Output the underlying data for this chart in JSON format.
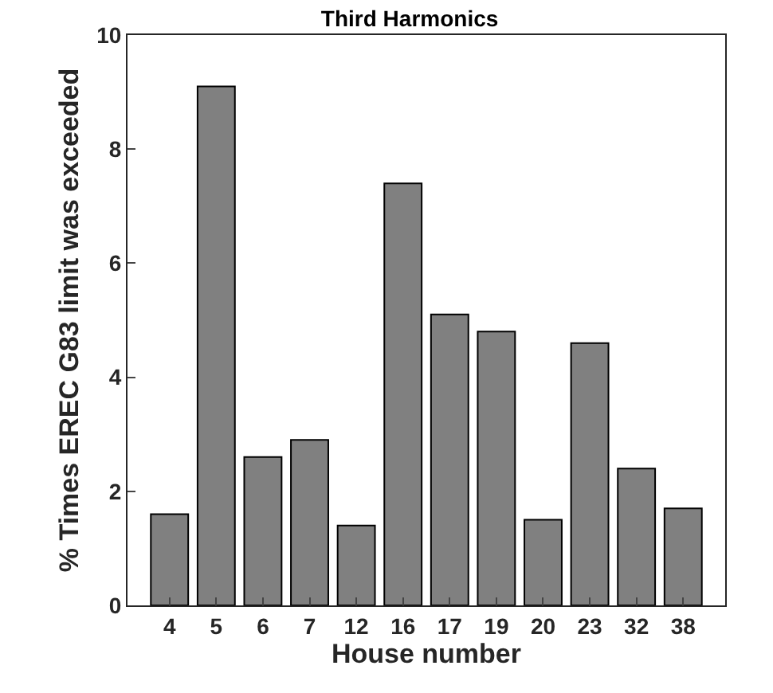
{
  "chart_data": {
    "type": "bar",
    "title": "Third Harmonics",
    "xlabel": "House number",
    "ylabel": "% Times EREC G83 limit was exceeded",
    "categories": [
      "4",
      "5",
      "6",
      "7",
      "12",
      "16",
      "17",
      "19",
      "20",
      "23",
      "32",
      "38"
    ],
    "values": [
      1.6,
      9.1,
      2.6,
      2.9,
      1.4,
      7.4,
      5.1,
      4.8,
      1.5,
      4.6,
      2.4,
      1.7
    ],
    "color": "#808080",
    "ylim": [
      0,
      10
    ],
    "yticks": [
      0,
      2,
      4,
      6,
      8,
      10
    ]
  }
}
